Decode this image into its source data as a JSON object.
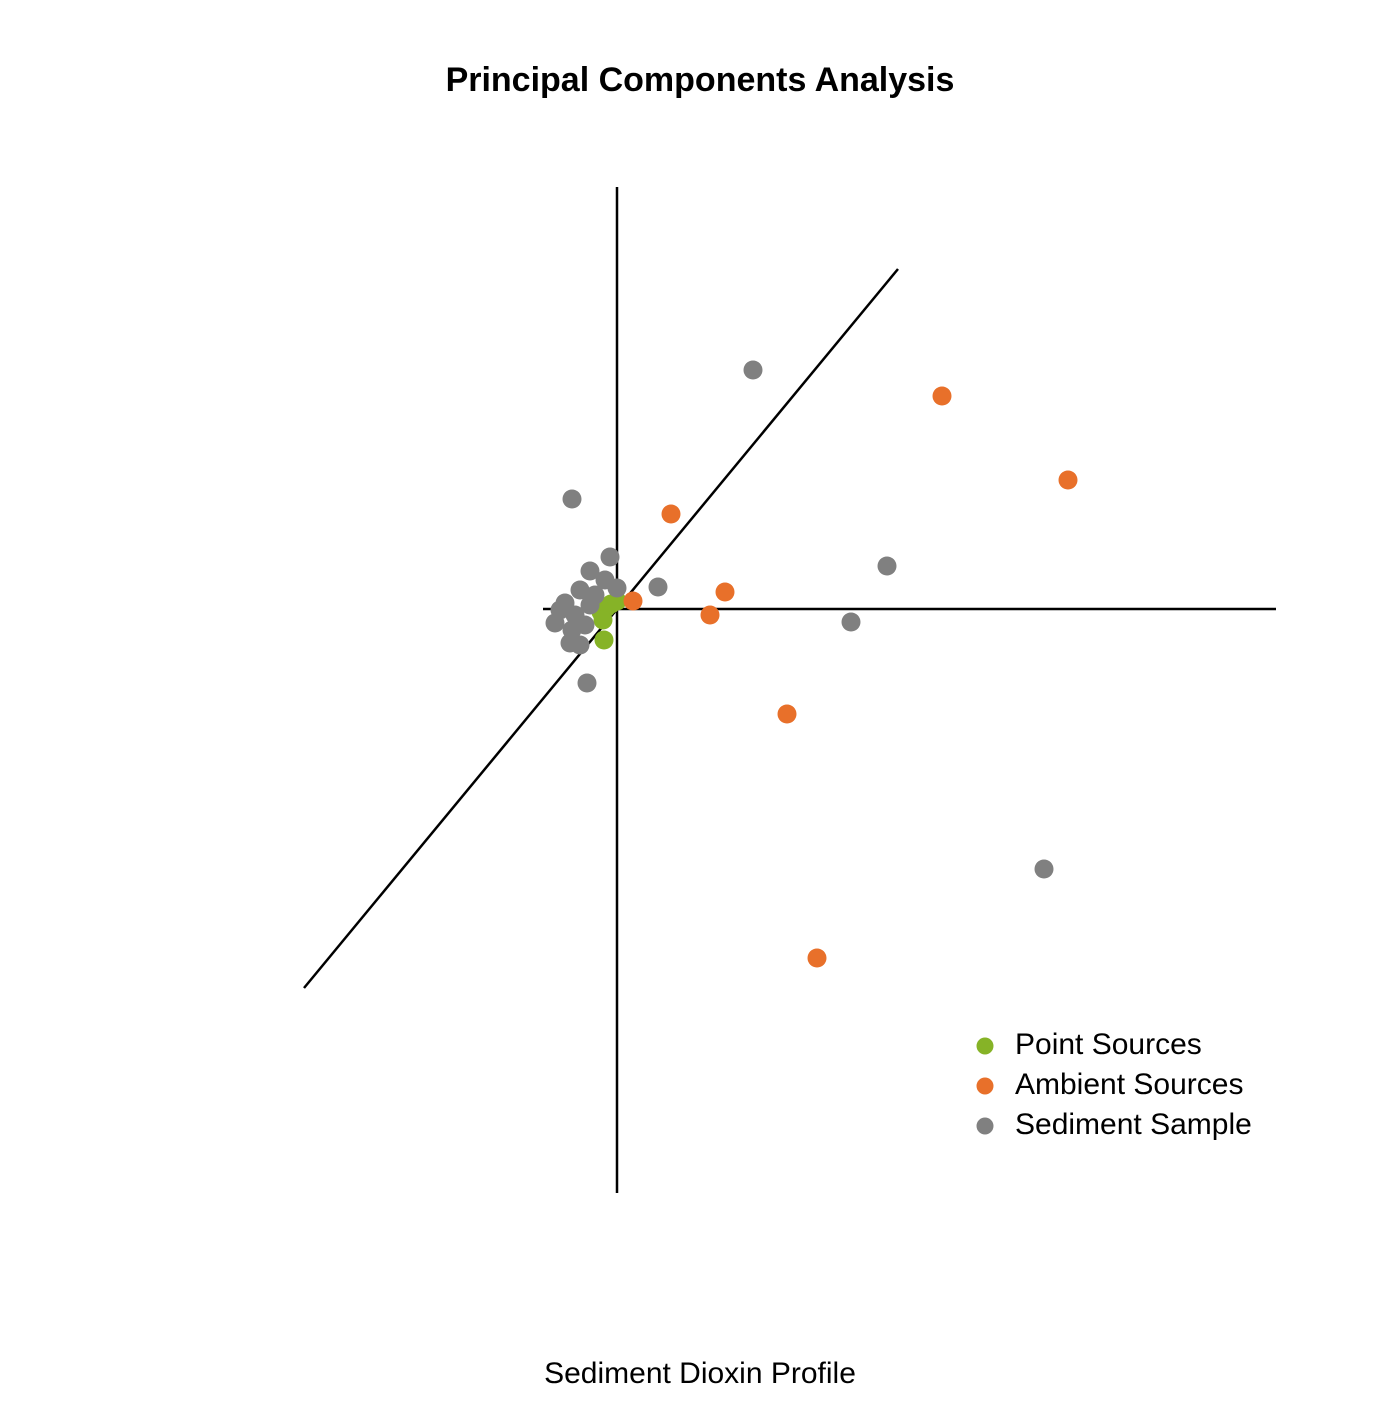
{
  "chart_data": {
    "type": "scatter",
    "title": "Principal Components Analysis",
    "x_label": "Sediment Dioxin Profile",
    "xlim": [
      -4,
      7
    ],
    "ylim": [
      -6,
      4.5
    ],
    "legend": "bottom-right",
    "reference_lines": [
      {
        "x": [
          0,
          0
        ],
        "y": [
          4.22,
          -5.84
        ]
      },
      {
        "x": [
          -0.74,
          6.59
        ],
        "y": [
          0,
          0
        ]
      },
      {
        "x": [
          -3.13,
          2.81
        ],
        "y": [
          -3.79,
          3.4
        ]
      }
    ],
    "series": [
      {
        "name": "Point Sources",
        "color": "#86b327",
        "x": [
          -0.13,
          -0.16,
          -0.11,
          -0.06,
          0,
          -0.14
        ],
        "values": [
          -0.31,
          -0.03,
          0.01,
          0.05,
          0.08,
          -0.11
        ]
      },
      {
        "name": "Ambient Sources",
        "color": "#e8702a",
        "x": [
          3.25,
          4.51,
          0.54,
          1.08,
          0.93,
          0.16,
          1.7,
          2.0
        ],
        "values": [
          2.13,
          1.29,
          0.95,
          0.17,
          -0.06,
          0.08,
          -1.05,
          -3.49
        ]
      },
      {
        "name": "Sediment Sample",
        "color": "#808080",
        "x": [
          1.36,
          -0.45,
          -0.07,
          0.41,
          2.7,
          2.34,
          -0.3,
          4.27,
          -0.27,
          -0.12,
          0,
          -0.37,
          -0.52,
          -0.62,
          -0.47,
          -0.37,
          -0.42,
          -0.27,
          -0.57,
          -0.32,
          -0.22,
          -0.45
        ],
        "values": [
          2.39,
          1.1,
          0.52,
          0.22,
          0.43,
          -0.13,
          -0.74,
          -2.6,
          0.38,
          0.29,
          0.21,
          0.19,
          0.06,
          -0.14,
          -0.34,
          -0.36,
          -0.06,
          0.04,
          -0.01,
          -0.16,
          0.14,
          -0.21
        ]
      }
    ]
  }
}
